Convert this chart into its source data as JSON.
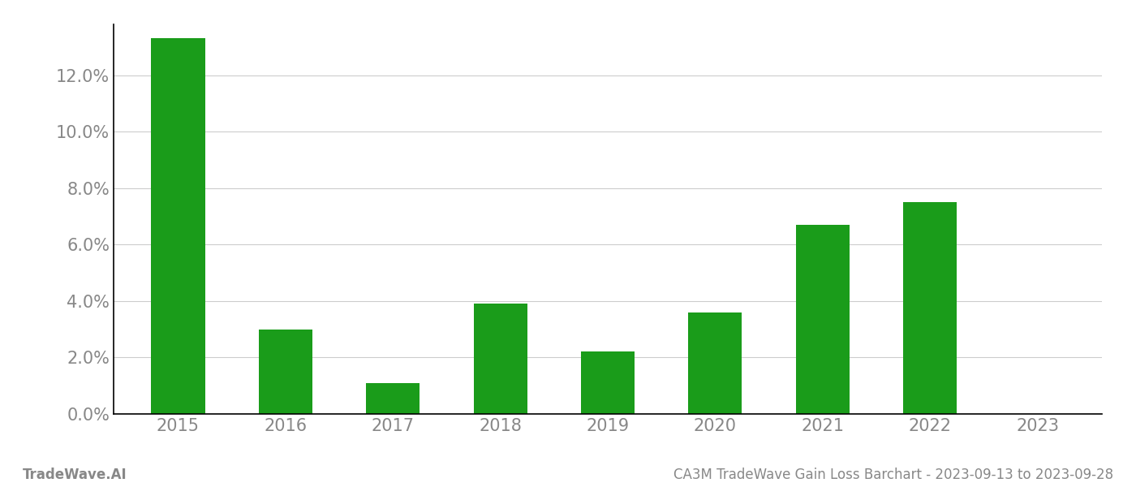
{
  "categories": [
    "2015",
    "2016",
    "2017",
    "2018",
    "2019",
    "2020",
    "2021",
    "2022",
    "2023"
  ],
  "values": [
    0.133,
    0.03,
    0.011,
    0.039,
    0.022,
    0.036,
    0.067,
    0.075,
    0.0
  ],
  "bar_color": "#1a9c1a",
  "background_color": "#ffffff",
  "grid_color": "#cccccc",
  "axis_label_color": "#888888",
  "spine_color": "#000000",
  "ylabel_ticks": [
    0.0,
    0.02,
    0.04,
    0.06,
    0.08,
    0.1,
    0.12
  ],
  "ylim": [
    0,
    0.138
  ],
  "title_right": "CA3M TradeWave Gain Loss Barchart - 2023-09-13 to 2023-09-28",
  "title_left": "TradeWave.AI",
  "title_fontsize": 12,
  "tick_fontsize": 15,
  "footer_fontsize": 12,
  "bar_width": 0.5
}
